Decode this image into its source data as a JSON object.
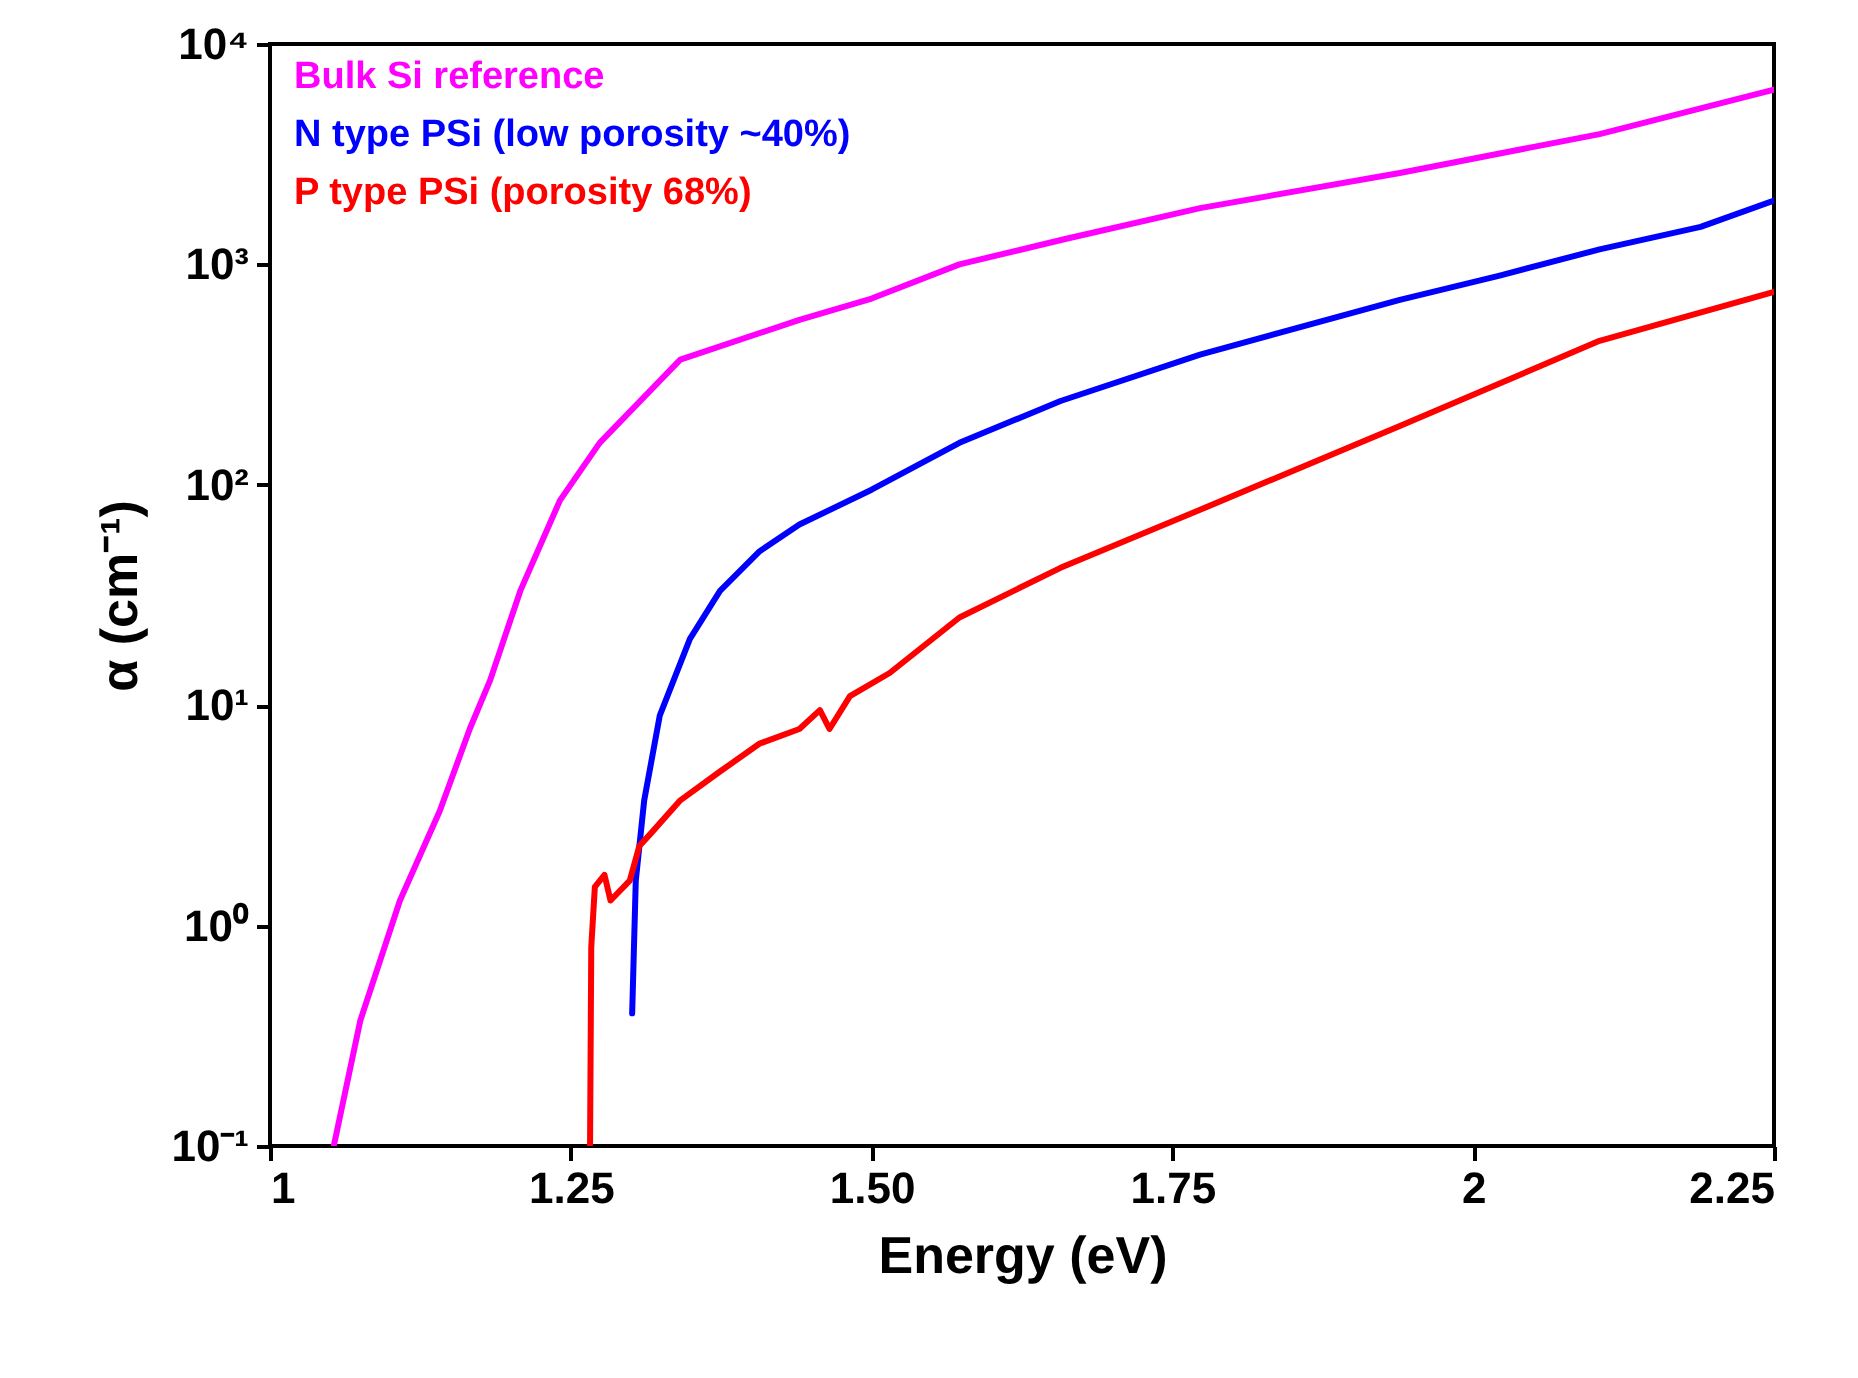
{
  "chart_data": {
    "type": "line",
    "xlabel": "Energy (eV)",
    "ylabel": "α (cm⁻¹)",
    "log": "y",
    "legend": "top left",
    "grid": false,
    "xlim": [
      1,
      2.25
    ],
    "xticks": [
      1,
      {
        "value": 1.25,
        "label": "1.25"
      },
      {
        "value": 1.5,
        "label": "1.50"
      },
      {
        "value": 1.75,
        "label": "1.75"
      },
      2,
      {
        "value": 2.25,
        "label": "2.25"
      }
    ],
    "ylim": [
      0.1,
      10000
    ],
    "yticks": [
      {
        "value": 0.1,
        "label": "10⁻¹"
      },
      {
        "value": 1,
        "label": "10⁰"
      },
      {
        "value": 10,
        "label": "10¹"
      },
      {
        "value": 100,
        "label": "10²"
      },
      {
        "value": 1000,
        "label": "10³"
      },
      {
        "value": 10000,
        "label": "10⁴"
      }
    ],
    "series": [
      {
        "name": "Bulk Si reference",
        "color": "#ff00ff",
        "x": [
          1.053,
          1.075,
          1.108,
          1.141,
          1.166,
          1.183,
          1.208,
          1.241,
          1.274,
          1.341,
          1.44,
          1.5,
          1.573,
          1.66,
          1.773,
          1.939,
          2.105,
          2.25
        ],
        "values": [
          0.1,
          0.37,
          1.3,
          3.3,
          7.8,
          13,
          33,
          85,
          155,
          370,
          560,
          700,
          1000,
          1300,
          1800,
          2600,
          3900,
          6200
        ]
      },
      {
        "name": "N type PSi (low porosity ~40%)",
        "color": "#0000ff",
        "x": [
          1.301,
          1.304,
          1.311,
          1.324,
          1.349,
          1.374,
          1.407,
          1.44,
          1.5,
          1.573,
          1.657,
          1.773,
          1.939,
          2.022,
          2.105,
          2.189,
          2.25
        ],
        "values": [
          0.4,
          1.6,
          3.7,
          9,
          20,
          33,
          50,
          66,
          95,
          155,
          240,
          390,
          690,
          890,
          1170,
          1480,
          1950
        ]
      },
      {
        "name": "P type PSi (porosity 68%)",
        "color": "#ff0000",
        "x": [
          1.266,
          1.267,
          1.27,
          1.278,
          1.283,
          1.299,
          1.307,
          1.316,
          1.341,
          1.374,
          1.407,
          1.44,
          1.457,
          1.465,
          1.482,
          1.515,
          1.573,
          1.657,
          1.773,
          1.939,
          2.105,
          2.25
        ],
        "values": [
          0.1,
          0.8,
          1.5,
          1.7,
          1.3,
          1.6,
          2.3,
          2.6,
          3.7,
          5,
          6.7,
          7.8,
          9.5,
          7.8,
          11,
          14,
          25,
          42,
          77,
          185,
          450,
          750
        ]
      }
    ]
  }
}
